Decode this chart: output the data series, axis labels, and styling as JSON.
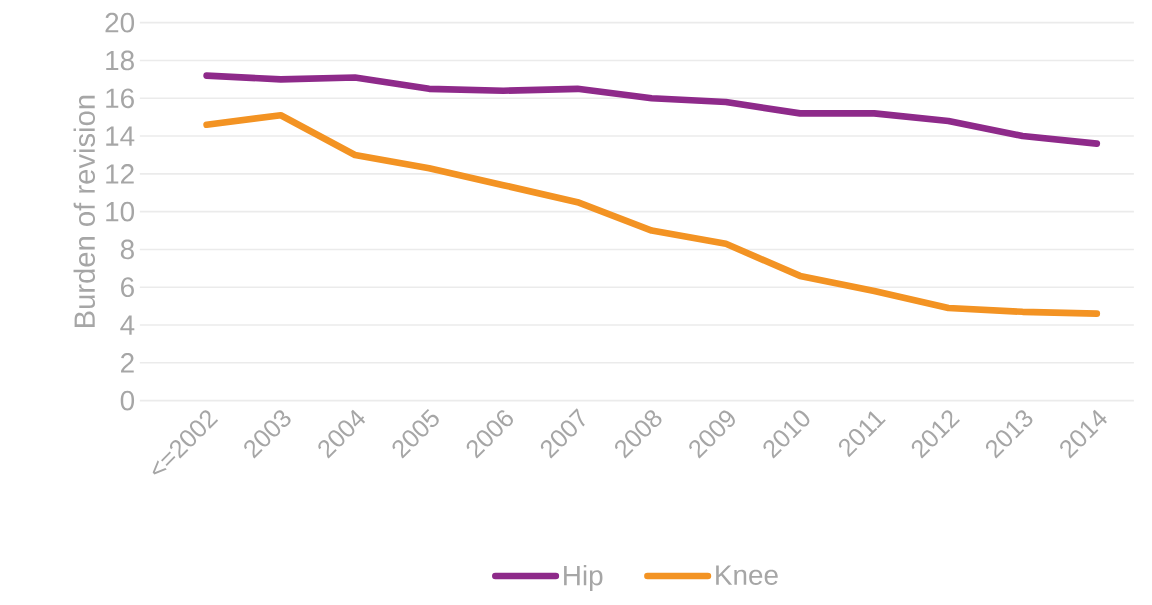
{
  "chart_data": {
    "type": "line",
    "ylabel": "Burden of revision",
    "categories": [
      "<=2002",
      "2003",
      "2004",
      "2005",
      "2006",
      "2007",
      "2008",
      "2009",
      "2010",
      "2011",
      "2012",
      "2013",
      "2014"
    ],
    "series": [
      {
        "name": "Hip",
        "color": "#8e2a8a",
        "values": [
          17.2,
          17.0,
          17.1,
          16.5,
          16.4,
          16.5,
          16.0,
          15.8,
          15.2,
          15.2,
          14.8,
          14.0,
          13.6
        ]
      },
      {
        "name": "Knee",
        "color": "#f39323",
        "values": [
          14.6,
          15.1,
          13.0,
          12.3,
          11.4,
          10.5,
          9.0,
          8.3,
          6.6,
          5.8,
          4.9,
          4.7,
          4.6
        ]
      }
    ],
    "ylim": [
      0,
      20
    ],
    "yticks": [
      0,
      2,
      4,
      6,
      8,
      10,
      12,
      14,
      16,
      18,
      20
    ],
    "grid": "y",
    "legend": "bottom",
    "marker": "none",
    "line_style": "solid"
  }
}
